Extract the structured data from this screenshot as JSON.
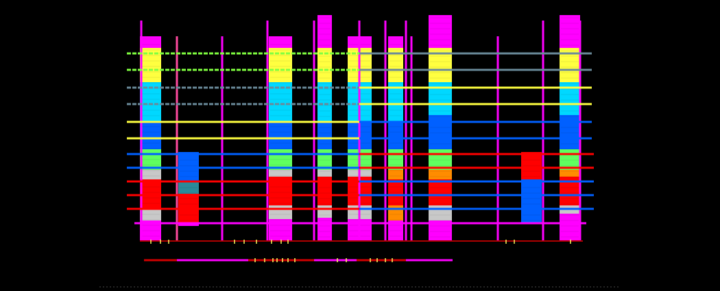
{
  "background": "#000000",
  "palette": {
    "magenta": "#ff00ff",
    "yellow": "#ffff40",
    "cyan": "#00d8ff",
    "blue": "#0060ff",
    "green": "#60ff60",
    "gray": "#c8c8c8",
    "red": "#ff0000",
    "orange": "#ff8c00",
    "teal": "#2a8a9a",
    "pink": "#ff4aa0",
    "slate": "#6a8a9a",
    "lime": "#80ff40",
    "dark-red": "#d00000",
    "baseline": "#ffff60"
  },
  "columns": [
    {
      "bands": [
        "magenta",
        "yellow",
        "cyan",
        "blue",
        "green",
        "gray",
        "red",
        "gray",
        "magenta"
      ]
    },
    {
      "bands": [
        "blue",
        "teal",
        "red",
        "magenta"
      ]
    },
    {
      "bands": [
        "magenta",
        "yellow",
        "cyan",
        "blue",
        "green",
        "gray",
        "red",
        "gray",
        "magenta"
      ]
    },
    {
      "bands": [
        "magenta",
        "yellow",
        "cyan",
        "blue",
        "green",
        "gray",
        "red",
        "gray",
        "magenta"
      ]
    },
    {
      "bands": [
        "magenta",
        "yellow",
        "cyan",
        "blue",
        "green",
        "gray",
        "red",
        "gray",
        "magenta"
      ]
    },
    {
      "bands": [
        "magenta",
        "yellow",
        "cyan",
        "blue",
        "green",
        "orange",
        "red",
        "orange",
        "magenta"
      ]
    },
    {
      "bands": [
        "magenta",
        "yellow",
        "cyan",
        "blue",
        "green",
        "orange",
        "red",
        "gray",
        "magenta"
      ]
    },
    {
      "bands": [
        "red",
        "blue"
      ]
    },
    {
      "bands": [
        "magenta",
        "yellow",
        "cyan",
        "blue",
        "green",
        "orange",
        "red",
        "gray",
        "magenta"
      ]
    }
  ],
  "hlines": [
    {
      "color": "lime",
      "dashed": true
    },
    {
      "color": "lime",
      "dashed": true
    },
    {
      "color": "slate",
      "dashed": true
    },
    {
      "color": "slate",
      "dashed": true
    },
    {
      "color": "yellow",
      "dashed": false
    },
    {
      "color": "yellow",
      "dashed": false
    },
    {
      "color": "blue",
      "dashed": false
    },
    {
      "color": "blue",
      "dashed": false
    },
    {
      "color": "red",
      "dashed": false
    },
    {
      "color": "red",
      "dashed": false
    },
    {
      "color": "red",
      "dashed": false
    },
    {
      "color": "magenta",
      "dashed": false
    }
  ],
  "segments": [
    {
      "color": "slate"
    },
    {
      "color": "slate"
    },
    {
      "color": "yellow"
    },
    {
      "color": "yellow"
    },
    {
      "color": "blue"
    },
    {
      "color": "blue"
    },
    {
      "color": "red"
    },
    {
      "color": "red"
    },
    {
      "color": "blue"
    },
    {
      "color": "blue"
    },
    {
      "color": "blue"
    }
  ],
  "vlines": [
    {
      "color": "magenta"
    },
    {
      "color": "pink"
    },
    {
      "color": "magenta"
    },
    {
      "color": "magenta"
    },
    {
      "color": "magenta"
    },
    {
      "color": "magenta"
    },
    {
      "color": "magenta"
    },
    {
      "color": "magenta"
    },
    {
      "color": "magenta"
    },
    {
      "color": "magenta"
    },
    {
      "color": "magenta"
    },
    {
      "color": "magenta"
    }
  ],
  "timelines": [
    {
      "segments": [
        "dark-red",
        "magenta",
        "dark-red",
        "magenta",
        "dark-red",
        "magenta"
      ]
    }
  ]
}
